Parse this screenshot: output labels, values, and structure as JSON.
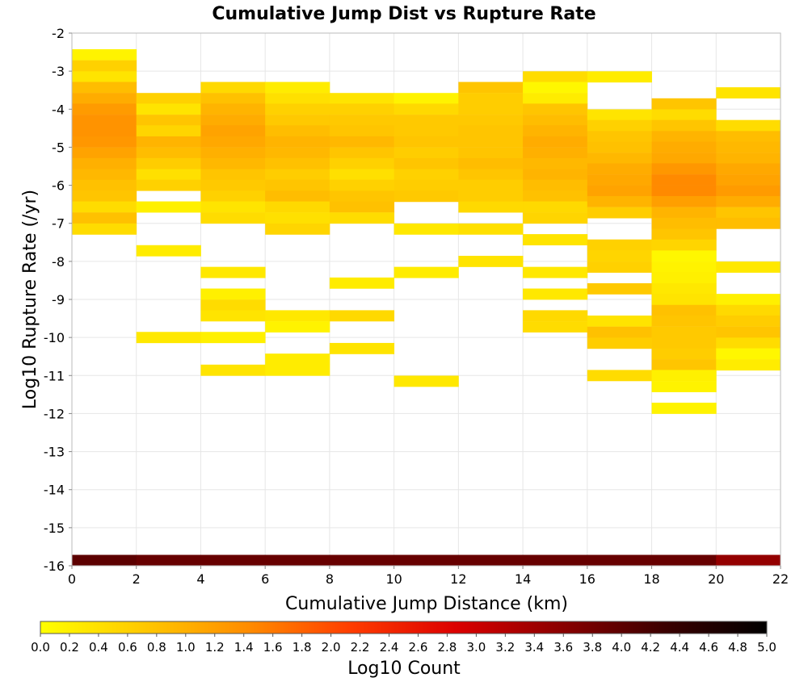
{
  "chart_data": {
    "type": "heatmap",
    "title": "Cumulative Jump Dist vs Rupture Rate",
    "xlabel": "Cumulative Jump Distance (km)",
    "ylabel": "Log10 Rupture Rate (/yr)",
    "xlim": [
      0,
      22
    ],
    "ylim": [
      -16,
      -2
    ],
    "x_bin_width": 2,
    "y_bin_height": 0.286,
    "xticks": [
      "0",
      "2",
      "4",
      "6",
      "8",
      "10",
      "12",
      "14",
      "16",
      "18",
      "20",
      "22"
    ],
    "yticks": [
      "-2",
      "-3",
      "-4",
      "-5",
      "-6",
      "-7",
      "-8",
      "-9",
      "-10",
      "-11",
      "-12",
      "-13",
      "-14",
      "-15",
      "-16"
    ],
    "grid": true,
    "colorbar": {
      "label": "Log10 Count",
      "min": 0.0,
      "max": 5.0,
      "ticks": [
        "0.0",
        "0.2",
        "0.4",
        "0.6",
        "0.8",
        "1.0",
        "1.2",
        "1.4",
        "1.6",
        "1.8",
        "2.0",
        "2.2",
        "2.4",
        "2.6",
        "2.8",
        "3.0",
        "3.2",
        "3.4",
        "3.6",
        "3.8",
        "4.0",
        "4.2",
        "4.4",
        "4.6",
        "4.8",
        "5.0"
      ],
      "colors": [
        "#ffff00",
        "#ffc800",
        "#ff8c00",
        "#ff3c00",
        "#dc0000",
        "#8c0000",
        "#3c0000",
        "#000000"
      ]
    },
    "columns": [
      {
        "x0": 0,
        "cells": [
          [
            -2.71,
            0.15
          ],
          [
            -3.0,
            0.6
          ],
          [
            -3.29,
            0.35
          ],
          [
            -3.57,
            0.85
          ],
          [
            -3.86,
            1.05
          ],
          [
            -4.14,
            1.25
          ],
          [
            -4.43,
            1.35
          ],
          [
            -4.71,
            1.35
          ],
          [
            -5.0,
            1.3
          ],
          [
            -5.29,
            1.15
          ],
          [
            -5.57,
            1.0
          ],
          [
            -5.86,
            0.9
          ],
          [
            -6.14,
            0.8
          ],
          [
            -6.43,
            0.75
          ],
          [
            -6.71,
            0.45
          ],
          [
            -7.0,
            0.8
          ],
          [
            -7.29,
            0.45
          ],
          [
            -16.0,
            4.0
          ]
        ]
      },
      {
        "x0": 2,
        "cells": [
          [
            -3.86,
            0.6
          ],
          [
            -4.14,
            0.35
          ],
          [
            -4.43,
            0.75
          ],
          [
            -4.71,
            0.55
          ],
          [
            -5.0,
            0.95
          ],
          [
            -5.29,
            0.85
          ],
          [
            -5.57,
            0.65
          ],
          [
            -5.86,
            0.4
          ],
          [
            -6.14,
            0.6
          ],
          [
            -6.71,
            0.2
          ],
          [
            -7.86,
            0.25
          ],
          [
            -10.14,
            0.3
          ],
          [
            -16.0,
            3.9
          ]
        ]
      },
      {
        "x0": 4,
        "cells": [
          [
            -3.57,
            0.5
          ],
          [
            -3.86,
            0.8
          ],
          [
            -4.14,
            0.95
          ],
          [
            -4.43,
            1.05
          ],
          [
            -4.71,
            1.15
          ],
          [
            -5.0,
            1.1
          ],
          [
            -5.29,
            1.0
          ],
          [
            -5.57,
            0.9
          ],
          [
            -5.86,
            0.75
          ],
          [
            -6.14,
            0.7
          ],
          [
            -6.43,
            0.6
          ],
          [
            -6.71,
            0.35
          ],
          [
            -7.0,
            0.45
          ],
          [
            -8.43,
            0.3
          ],
          [
            -9.0,
            0.2
          ],
          [
            -9.29,
            0.45
          ],
          [
            -9.57,
            0.35
          ],
          [
            -10.14,
            0.2
          ],
          [
            -11.0,
            0.35
          ],
          [
            -16.0,
            3.9
          ]
        ]
      },
      {
        "x0": 6,
        "cells": [
          [
            -3.57,
            0.25
          ],
          [
            -3.86,
            0.4
          ],
          [
            -4.14,
            0.6
          ],
          [
            -4.43,
            0.7
          ],
          [
            -4.71,
            0.85
          ],
          [
            -5.0,
            0.95
          ],
          [
            -5.29,
            0.9
          ],
          [
            -5.57,
            0.8
          ],
          [
            -5.86,
            0.65
          ],
          [
            -6.14,
            0.75
          ],
          [
            -6.43,
            0.85
          ],
          [
            -6.71,
            0.5
          ],
          [
            -7.0,
            0.4
          ],
          [
            -7.29,
            0.55
          ],
          [
            -9.57,
            0.3
          ],
          [
            -9.86,
            0.15
          ],
          [
            -10.71,
            0.25
          ],
          [
            -11.0,
            0.25
          ],
          [
            -16.0,
            3.9
          ]
        ]
      },
      {
        "x0": 8,
        "cells": [
          [
            -3.86,
            0.35
          ],
          [
            -4.14,
            0.6
          ],
          [
            -4.43,
            0.7
          ],
          [
            -4.71,
            0.75
          ],
          [
            -5.0,
            0.9
          ],
          [
            -5.29,
            0.75
          ],
          [
            -5.57,
            0.6
          ],
          [
            -5.86,
            0.4
          ],
          [
            -6.14,
            0.6
          ],
          [
            -6.43,
            0.75
          ],
          [
            -6.71,
            0.8
          ],
          [
            -7.0,
            0.45
          ],
          [
            -8.71,
            0.25
          ],
          [
            -9.57,
            0.5
          ],
          [
            -10.43,
            0.35
          ],
          [
            -16.0,
            3.9
          ]
        ]
      },
      {
        "x0": 10,
        "cells": [
          [
            -3.86,
            0.15
          ],
          [
            -4.14,
            0.5
          ],
          [
            -4.43,
            0.7
          ],
          [
            -4.71,
            0.7
          ],
          [
            -5.0,
            0.75
          ],
          [
            -5.29,
            0.65
          ],
          [
            -5.57,
            0.75
          ],
          [
            -5.86,
            0.6
          ],
          [
            -6.14,
            0.65
          ],
          [
            -6.43,
            0.7
          ],
          [
            -7.29,
            0.3
          ],
          [
            -8.43,
            0.25
          ],
          [
            -11.29,
            0.3
          ],
          [
            -16.0,
            3.9
          ]
        ]
      },
      {
        "x0": 12,
        "cells": [
          [
            -3.57,
            0.75
          ],
          [
            -3.86,
            0.65
          ],
          [
            -4.14,
            0.65
          ],
          [
            -4.43,
            0.7
          ],
          [
            -4.71,
            0.75
          ],
          [
            -5.0,
            0.75
          ],
          [
            -5.29,
            0.75
          ],
          [
            -5.57,
            0.85
          ],
          [
            -5.86,
            0.75
          ],
          [
            -6.14,
            0.65
          ],
          [
            -6.43,
            0.65
          ],
          [
            -6.71,
            0.5
          ],
          [
            -7.29,
            0.4
          ],
          [
            -8.14,
            0.35
          ],
          [
            -16.0,
            3.9
          ]
        ]
      },
      {
        "x0": 14,
        "cells": [
          [
            -3.29,
            0.45
          ],
          [
            -3.57,
            0.1
          ],
          [
            -3.86,
            0.25
          ],
          [
            -4.14,
            0.75
          ],
          [
            -4.43,
            0.85
          ],
          [
            -4.71,
            0.95
          ],
          [
            -5.0,
            1.05
          ],
          [
            -5.29,
            1.0
          ],
          [
            -5.57,
            0.9
          ],
          [
            -5.86,
            0.95
          ],
          [
            -6.14,
            0.85
          ],
          [
            -6.43,
            0.8
          ],
          [
            -6.71,
            0.5
          ],
          [
            -7.0,
            0.55
          ],
          [
            -7.57,
            0.35
          ],
          [
            -8.43,
            0.3
          ],
          [
            -9.0,
            0.3
          ],
          [
            -9.57,
            0.5
          ],
          [
            -9.86,
            0.45
          ],
          [
            -16.0,
            3.9
          ]
        ]
      },
      {
        "x0": 16,
        "cells": [
          [
            -3.29,
            0.25
          ],
          [
            -4.29,
            0.35
          ],
          [
            -4.57,
            0.6
          ],
          [
            -4.86,
            0.75
          ],
          [
            -5.14,
            0.8
          ],
          [
            -5.43,
            0.9
          ],
          [
            -5.71,
            1.05
          ],
          [
            -6.0,
            1.1
          ],
          [
            -6.29,
            1.15
          ],
          [
            -6.57,
            0.95
          ],
          [
            -6.86,
            0.65
          ],
          [
            -7.71,
            0.6
          ],
          [
            -8.0,
            0.55
          ],
          [
            -8.29,
            0.6
          ],
          [
            -8.86,
            0.7
          ],
          [
            -9.71,
            0.35
          ],
          [
            -10.0,
            0.8
          ],
          [
            -10.29,
            0.65
          ],
          [
            -11.14,
            0.45
          ],
          [
            -16.0,
            3.9
          ]
        ]
      },
      {
        "x0": 18,
        "cells": [
          [
            -4.0,
            0.75
          ],
          [
            -4.29,
            0.45
          ],
          [
            -4.57,
            0.75
          ],
          [
            -4.86,
            0.95
          ],
          [
            -5.14,
            1.05
          ],
          [
            -5.43,
            1.1
          ],
          [
            -5.71,
            1.3
          ],
          [
            -6.0,
            1.45
          ],
          [
            -6.29,
            1.45
          ],
          [
            -6.57,
            1.2
          ],
          [
            -6.86,
            0.95
          ],
          [
            -7.14,
            0.85
          ],
          [
            -7.43,
            0.75
          ],
          [
            -7.71,
            0.55
          ],
          [
            -8.0,
            0.1
          ],
          [
            -8.29,
            0.15
          ],
          [
            -8.57,
            0.2
          ],
          [
            -8.86,
            0.3
          ],
          [
            -9.14,
            0.35
          ],
          [
            -9.43,
            0.8
          ],
          [
            -9.71,
            0.75
          ],
          [
            -10.0,
            0.7
          ],
          [
            -10.29,
            0.7
          ],
          [
            -10.57,
            0.65
          ],
          [
            -10.86,
            0.75
          ],
          [
            -11.14,
            0.2
          ],
          [
            -11.43,
            0.15
          ],
          [
            -12.0,
            0.15
          ],
          [
            -16.0,
            3.9
          ]
        ]
      },
      {
        "x0": 20,
        "cells": [
          [
            -3.71,
            0.35
          ],
          [
            -4.57,
            0.45
          ],
          [
            -4.86,
            0.85
          ],
          [
            -5.14,
            0.9
          ],
          [
            -5.43,
            0.95
          ],
          [
            -5.71,
            1.1
          ],
          [
            -6.0,
            1.15
          ],
          [
            -6.29,
            1.25
          ],
          [
            -6.57,
            1.05
          ],
          [
            -6.86,
            0.75
          ],
          [
            -7.14,
            0.85
          ],
          [
            -8.29,
            0.3
          ],
          [
            -9.14,
            0.2
          ],
          [
            -9.43,
            0.5
          ],
          [
            -9.71,
            0.65
          ],
          [
            -10.0,
            0.75
          ],
          [
            -10.29,
            0.45
          ],
          [
            -10.57,
            0.1
          ],
          [
            -10.86,
            0.25
          ],
          [
            -16.0,
            3.5
          ]
        ]
      }
    ]
  }
}
